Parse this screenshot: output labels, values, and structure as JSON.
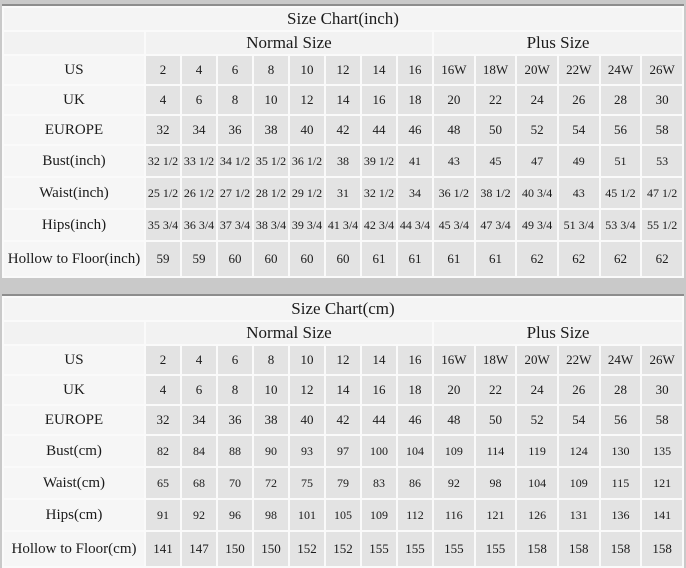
{
  "colors": {
    "page_background": "#c9c9c9",
    "panel_background": "#f5f5f5",
    "data_cell_background": "#e3e3e3",
    "border_top": "#8d8d8d",
    "cell_border": "#fafafa",
    "text": "#1b1b1b"
  },
  "chart_data": [
    {
      "type": "table",
      "title": "Size Chart(inch)",
      "column_groups": [
        {
          "label": "Normal Size",
          "span": 8
        },
        {
          "label": "Plus Size",
          "span": 6
        }
      ],
      "rows": [
        {
          "label": "US",
          "values": [
            "2",
            "4",
            "6",
            "8",
            "10",
            "12",
            "14",
            "16",
            "16W",
            "18W",
            "20W",
            "22W",
            "24W",
            "26W"
          ]
        },
        {
          "label": "UK",
          "values": [
            "4",
            "6",
            "8",
            "10",
            "12",
            "14",
            "16",
            "18",
            "20",
            "22",
            "24",
            "26",
            "28",
            "30"
          ]
        },
        {
          "label": "EUROPE",
          "values": [
            "32",
            "34",
            "36",
            "38",
            "40",
            "42",
            "44",
            "46",
            "48",
            "50",
            "52",
            "54",
            "56",
            "58"
          ]
        },
        {
          "label": "Bust(inch)",
          "values": [
            "32 1/2",
            "33 1/2",
            "34 1/2",
            "35 1/2",
            "36 1/2",
            "38",
            "39 1/2",
            "41",
            "43",
            "45",
            "47",
            "49",
            "51",
            "53"
          ]
        },
        {
          "label": "Waist(inch)",
          "values": [
            "25 1/2",
            "26 1/2",
            "27 1/2",
            "28 1/2",
            "29 1/2",
            "31",
            "32 1/2",
            "34",
            "36 1/2",
            "38 1/2",
            "40 3/4",
            "43",
            "45 1/2",
            "47 1/2"
          ]
        },
        {
          "label": "Hips(inch)",
          "values": [
            "35 3/4",
            "36 3/4",
            "37 3/4",
            "38 3/4",
            "39 3/4",
            "41 3/4",
            "42 3/4",
            "44 3/4",
            "45 3/4",
            "47 3/4",
            "49 3/4",
            "51 3/4",
            "53 3/4",
            "55 1/2"
          ]
        },
        {
          "label": "Hollow to Floor(inch)",
          "values": [
            "59",
            "59",
            "60",
            "60",
            "60",
            "60",
            "61",
            "61",
            "61",
            "61",
            "62",
            "62",
            "62",
            "62"
          ]
        }
      ]
    },
    {
      "type": "table",
      "title": "Size Chart(cm)",
      "column_groups": [
        {
          "label": "Normal Size",
          "span": 8
        },
        {
          "label": "Plus Size",
          "span": 6
        }
      ],
      "rows": [
        {
          "label": "US",
          "values": [
            "2",
            "4",
            "6",
            "8",
            "10",
            "12",
            "14",
            "16",
            "16W",
            "18W",
            "20W",
            "22W",
            "24W",
            "26W"
          ]
        },
        {
          "label": "UK",
          "values": [
            "4",
            "6",
            "8",
            "10",
            "12",
            "14",
            "16",
            "18",
            "20",
            "22",
            "24",
            "26",
            "28",
            "30"
          ]
        },
        {
          "label": "EUROPE",
          "values": [
            "32",
            "34",
            "36",
            "38",
            "40",
            "42",
            "44",
            "46",
            "48",
            "50",
            "52",
            "54",
            "56",
            "58"
          ]
        },
        {
          "label": "Bust(cm)",
          "values": [
            "82",
            "84",
            "88",
            "90",
            "93",
            "97",
            "100",
            "104",
            "109",
            "114",
            "119",
            "124",
            "130",
            "135"
          ]
        },
        {
          "label": "Waist(cm)",
          "values": [
            "65",
            "68",
            "70",
            "72",
            "75",
            "79",
            "83",
            "86",
            "92",
            "98",
            "104",
            "109",
            "115",
            "121"
          ]
        },
        {
          "label": "Hips(cm)",
          "values": [
            "91",
            "92",
            "96",
            "98",
            "101",
            "105",
            "109",
            "112",
            "116",
            "121",
            "126",
            "131",
            "136",
            "141"
          ]
        },
        {
          "label": "Hollow to Floor(cm)",
          "values": [
            "141",
            "147",
            "150",
            "150",
            "152",
            "152",
            "155",
            "155",
            "155",
            "155",
            "158",
            "158",
            "158",
            "158"
          ]
        }
      ]
    }
  ]
}
